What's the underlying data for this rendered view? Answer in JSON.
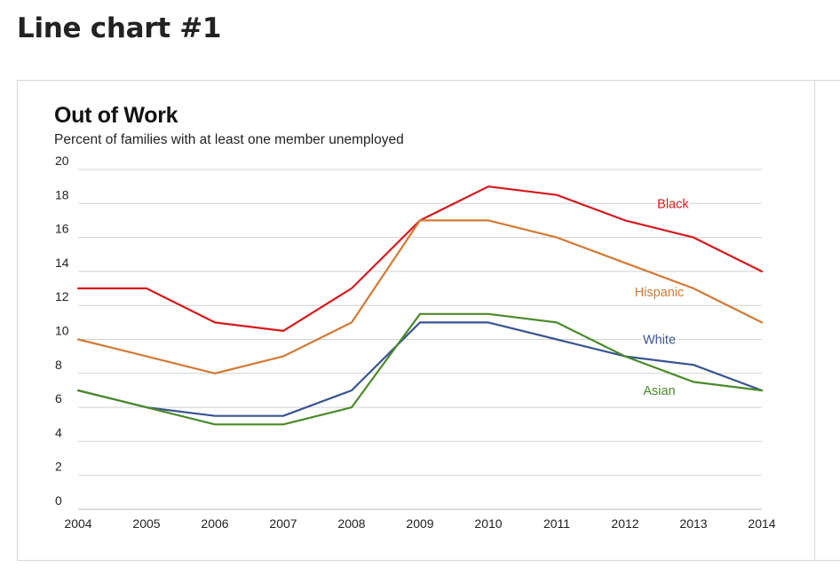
{
  "page": {
    "heading": "Line chart #1"
  },
  "chart_data": {
    "type": "line",
    "title": "Out of Work",
    "subtitle": "Percent of families with at least one member unemployed",
    "xlabel": "",
    "ylabel": "",
    "x": [
      2004,
      2005,
      2006,
      2007,
      2008,
      2009,
      2010,
      2011,
      2012,
      2013,
      2014
    ],
    "xlim": [
      2004,
      2014
    ],
    "ylim": [
      0,
      20
    ],
    "y_ticks": [
      0,
      2,
      4,
      6,
      8,
      10,
      12,
      14,
      16,
      18,
      20
    ],
    "x_tick_labels": [
      "2004",
      "2005",
      "2006",
      "2007",
      "2008",
      "2009",
      "2010",
      "2011",
      "2012",
      "2013",
      "2014"
    ],
    "y_tick_labels": [
      "0",
      "2",
      "4",
      "6",
      "8",
      "10",
      "12",
      "14",
      "16",
      "18",
      "20"
    ],
    "grid": "horizontal",
    "legend": "inline labels",
    "series": [
      {
        "name": "Black",
        "color": "#d7191c",
        "values": [
          13,
          13,
          11,
          10.5,
          13,
          17,
          19,
          18.5,
          17,
          16,
          14
        ],
        "label_at": 2012.7,
        "label_value": 18
      },
      {
        "name": "Hispanic",
        "color": "#d47a35",
        "values": [
          10,
          9,
          8,
          9,
          11,
          17,
          17,
          16,
          14.5,
          13,
          11
        ],
        "label_at": 2012.5,
        "label_value": 12.8
      },
      {
        "name": "White",
        "color": "#3a5391",
        "values": [
          7,
          6,
          5.5,
          5.5,
          7,
          11,
          11,
          10,
          9,
          8.5,
          7
        ],
        "label_at": 2012.5,
        "label_value": 10
      },
      {
        "name": "Asian",
        "color": "#4a8a2a",
        "values": [
          7,
          6,
          5,
          5,
          6,
          11.5,
          11.5,
          11,
          9,
          7.5,
          7
        ],
        "label_at": 2012.5,
        "label_value": 7
      }
    ]
  }
}
